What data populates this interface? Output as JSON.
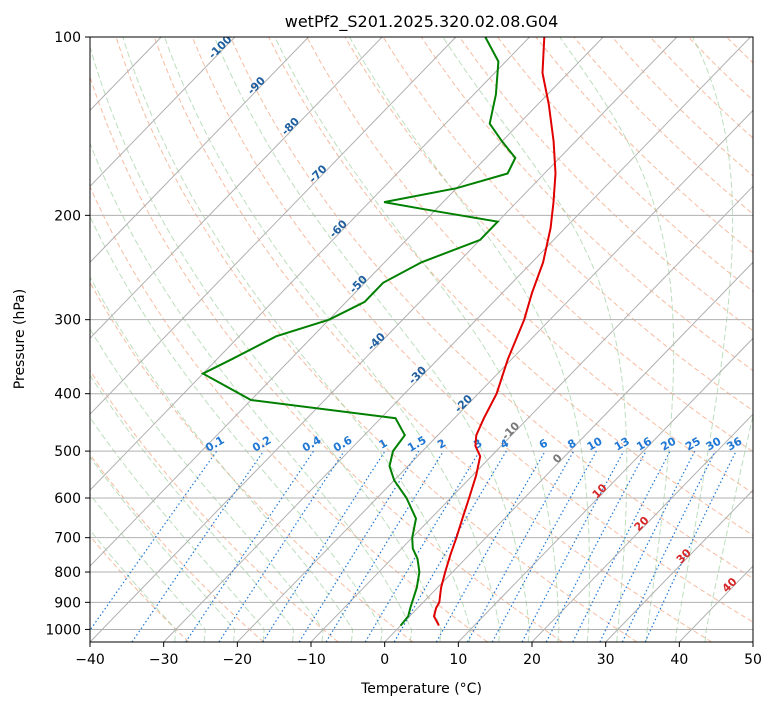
{
  "chart_data": {
    "type": "line",
    "title": "wetPf2_S201.2025.320.02.08.G04",
    "xlabel": "Temperature (°C)",
    "ylabel": "Pressure (hPa)",
    "xlim": [
      -40,
      50
    ],
    "ylim": [
      1050,
      100
    ],
    "y_scale": "log",
    "grid": true,
    "x_ticks": [
      -40,
      -30,
      -20,
      -10,
      0,
      10,
      20,
      30,
      40,
      50
    ],
    "y_ticks": [
      100,
      200,
      300,
      400,
      500,
      600,
      700,
      800,
      900,
      1000
    ],
    "series": [
      {
        "role": "temperature",
        "color": "#e00000",
        "points": [
          {
            "p": 985,
            "t": 5.2
          },
          {
            "p": 950,
            "t": 3.3
          },
          {
            "p": 920,
            "t": 2.5
          },
          {
            "p": 900,
            "t": 2.2
          },
          {
            "p": 850,
            "t": 0.5
          },
          {
            "p": 800,
            "t": -1.0
          },
          {
            "p": 750,
            "t": -2.5
          },
          {
            "p": 700,
            "t": -4.0
          },
          {
            "p": 650,
            "t": -5.7
          },
          {
            "p": 600,
            "t": -7.5
          },
          {
            "p": 550,
            "t": -9.5
          },
          {
            "p": 510,
            "t": -11.5
          },
          {
            "p": 490,
            "t": -13.5
          },
          {
            "p": 470,
            "t": -14.8
          },
          {
            "p": 440,
            "t": -16.0
          },
          {
            "p": 400,
            "t": -17.5
          },
          {
            "p": 350,
            "t": -20.5
          },
          {
            "p": 300,
            "t": -23.5
          },
          {
            "p": 270,
            "t": -26.0
          },
          {
            "p": 240,
            "t": -28.5
          },
          {
            "p": 210,
            "t": -32.0
          },
          {
            "p": 190,
            "t": -35.0
          },
          {
            "p": 170,
            "t": -38.5
          },
          {
            "p": 150,
            "t": -43.0
          },
          {
            "p": 130,
            "t": -48.5
          },
          {
            "p": 115,
            "t": -53.5
          },
          {
            "p": 100,
            "t": -58.0
          }
        ]
      },
      {
        "role": "dewpoint",
        "color": "#008000",
        "points": [
          {
            "p": 985,
            "t": 0.0
          },
          {
            "p": 950,
            "t": -0.2
          },
          {
            "p": 920,
            "t": -1.0
          },
          {
            "p": 900,
            "t": -1.5
          },
          {
            "p": 850,
            "t": -2.8
          },
          {
            "p": 800,
            "t": -4.5
          },
          {
            "p": 760,
            "t": -6.5
          },
          {
            "p": 730,
            "t": -8.5
          },
          {
            "p": 700,
            "t": -10.0
          },
          {
            "p": 650,
            "t": -12.0
          },
          {
            "p": 600,
            "t": -16.0
          },
          {
            "p": 560,
            "t": -20.0
          },
          {
            "p": 530,
            "t": -22.5
          },
          {
            "p": 500,
            "t": -24.0
          },
          {
            "p": 470,
            "t": -24.5
          },
          {
            "p": 440,
            "t": -28.0
          },
          {
            "p": 410,
            "t": -50.0
          },
          {
            "p": 370,
            "t": -60.0
          },
          {
            "p": 350,
            "t": -58.0
          },
          {
            "p": 320,
            "t": -55.0
          },
          {
            "p": 300,
            "t": -50.0
          },
          {
            "p": 280,
            "t": -47.5
          },
          {
            "p": 260,
            "t": -47.5
          },
          {
            "p": 240,
            "t": -45.0
          },
          {
            "p": 220,
            "t": -40.0
          },
          {
            "p": 205,
            "t": -40.0
          },
          {
            "p": 195,
            "t": -52.0
          },
          {
            "p": 190,
            "t": -58.0
          },
          {
            "p": 180,
            "t": -50.0
          },
          {
            "p": 170,
            "t": -45.0
          },
          {
            "p": 160,
            "t": -46.0
          },
          {
            "p": 150,
            "t": -50.0
          },
          {
            "p": 140,
            "t": -54.0
          },
          {
            "p": 125,
            "t": -57.0
          },
          {
            "p": 110,
            "t": -61.0
          },
          {
            "p": 100,
            "t": -66.0
          }
        ]
      }
    ],
    "dry_adiabat_labels": [
      "-100",
      "-90",
      "-80",
      "-70",
      "-60",
      "-50",
      "-40",
      "-30",
      "-20",
      "-10",
      "0",
      "10",
      "20",
      "30",
      "40"
    ],
    "mixing_ratio_labels": [
      "0.1",
      "0.2",
      "0.4",
      "0.6",
      "1",
      "1.5",
      "2",
      "3",
      "4",
      "6",
      "8",
      "10",
      "13",
      "16",
      "20",
      "25",
      "30",
      "36"
    ],
    "mixing_ratio_values": [
      0.1,
      0.2,
      0.4,
      0.6,
      1,
      1.5,
      2,
      3,
      4,
      6,
      8,
      10,
      13,
      16,
      20,
      25,
      30,
      36
    ],
    "colors": {
      "isotherm": "#b0b0b0",
      "isobar": "#b0b0b0",
      "dry_adiabat": "#f4a582",
      "moist_adiabat": "#99cc99",
      "mixing_ratio": "#1f77d4",
      "adiabat_label_cold": "#1f5fa0",
      "adiabat_label_warm": "#d62728",
      "cold_label_threshold_index": 9,
      "warm_label_threshold_index": 11
    }
  }
}
